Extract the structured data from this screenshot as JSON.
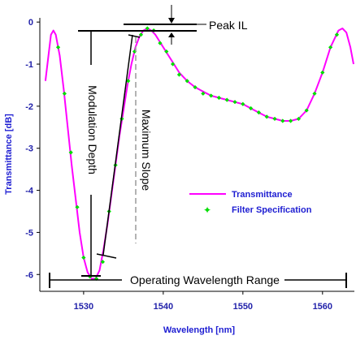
{
  "chart_data": {
    "type": "line",
    "xlabel": "Wavelength [nm]",
    "ylabel": "Transmittance [dB]",
    "xlim": [
      1524.5,
      1564
    ],
    "ylim": [
      -6.4,
      0.1
    ],
    "x_ticks": [
      "1530",
      "1540",
      "1550",
      "1560"
    ],
    "y_ticks": [
      "0",
      "-1",
      "-2",
      "-3",
      "-4",
      "-5",
      "-6"
    ],
    "grid": false,
    "legend_position": "center-right",
    "series": [
      {
        "name": "Transmittance",
        "color": "#ff00ff",
        "style": "line",
        "x": [
          1525.2,
          1525.9,
          1526.2,
          1526.5,
          1527.0,
          1527.5,
          1528.0,
          1528.5,
          1529.0,
          1529.5,
          1530.0,
          1530.5,
          1531.0,
          1531.5,
          1532.0,
          1532.5,
          1533.0,
          1533.5,
          1534.0,
          1534.5,
          1535.0,
          1535.5,
          1536.0,
          1536.5,
          1537.0,
          1537.5,
          1538.0,
          1538.5,
          1539.0,
          1539.5,
          1540.0,
          1540.5,
          1541.0,
          1541.5,
          1542.0,
          1543.0,
          1544.0,
          1545.0,
          1546.0,
          1547.0,
          1548.0,
          1549.0,
          1550.0,
          1551.0,
          1552.0,
          1553.0,
          1554.0,
          1555.0,
          1556.0,
          1557.0,
          1558.0,
          1559.0,
          1560.0,
          1561.0,
          1562.0,
          1562.5,
          1563.0,
          1563.5,
          1563.9
        ],
        "values": [
          -1.4,
          -0.3,
          -0.2,
          -0.3,
          -0.8,
          -1.6,
          -2.5,
          -3.4,
          -4.2,
          -5.0,
          -5.6,
          -5.95,
          -6.1,
          -6.1,
          -5.9,
          -5.4,
          -4.8,
          -4.1,
          -3.4,
          -2.7,
          -2.1,
          -1.5,
          -1.0,
          -0.6,
          -0.35,
          -0.2,
          -0.15,
          -0.2,
          -0.3,
          -0.45,
          -0.6,
          -0.75,
          -0.9,
          -1.05,
          -1.2,
          -1.4,
          -1.55,
          -1.65,
          -1.75,
          -1.8,
          -1.85,
          -1.9,
          -1.95,
          -2.05,
          -2.15,
          -2.25,
          -2.3,
          -2.35,
          -2.35,
          -2.3,
          -2.1,
          -1.7,
          -1.2,
          -0.6,
          -0.2,
          -0.15,
          -0.25,
          -0.6,
          -1.0
        ]
      },
      {
        "name": "Filter Specification",
        "color": "#00dd00",
        "style": "markers",
        "x": [
          1526.8,
          1527.6,
          1528.4,
          1529.2,
          1530.0,
          1530.8,
          1531.6,
          1532.4,
          1533.2,
          1534.0,
          1534.8,
          1535.6,
          1536.4,
          1537.2,
          1538.0,
          1538.8,
          1539.6,
          1540.4,
          1541.2,
          1542.0,
          1543.0,
          1544.0,
          1545.0,
          1546.0,
          1547.0,
          1548.0,
          1549.0,
          1550.0,
          1551.0,
          1552.0,
          1553.0,
          1554.0,
          1555.0,
          1556.0,
          1557.0,
          1558.0,
          1559.0,
          1560.0,
          1561.0,
          1561.8
        ],
        "values": [
          -0.6,
          -1.7,
          -3.1,
          -4.4,
          -5.6,
          -6.05,
          -6.1,
          -5.7,
          -4.5,
          -3.4,
          -2.3,
          -1.4,
          -0.7,
          -0.3,
          -0.15,
          -0.2,
          -0.5,
          -0.7,
          -1.0,
          -1.25,
          -1.4,
          -1.55,
          -1.7,
          -1.75,
          -1.8,
          -1.85,
          -1.9,
          -1.95,
          -2.05,
          -2.15,
          -2.25,
          -2.3,
          -2.35,
          -2.35,
          -2.3,
          -2.1,
          -1.7,
          -1.2,
          -0.6,
          -0.3
        ]
      }
    ],
    "legend": [
      "Transmittance",
      "Filter Specification"
    ],
    "annotations": {
      "peak_il": "Peak IL",
      "modulation_depth": "Modulation Depth",
      "maximum_slope": "Maximum Slope",
      "operating_range": "Operating Wavelength Range"
    }
  }
}
